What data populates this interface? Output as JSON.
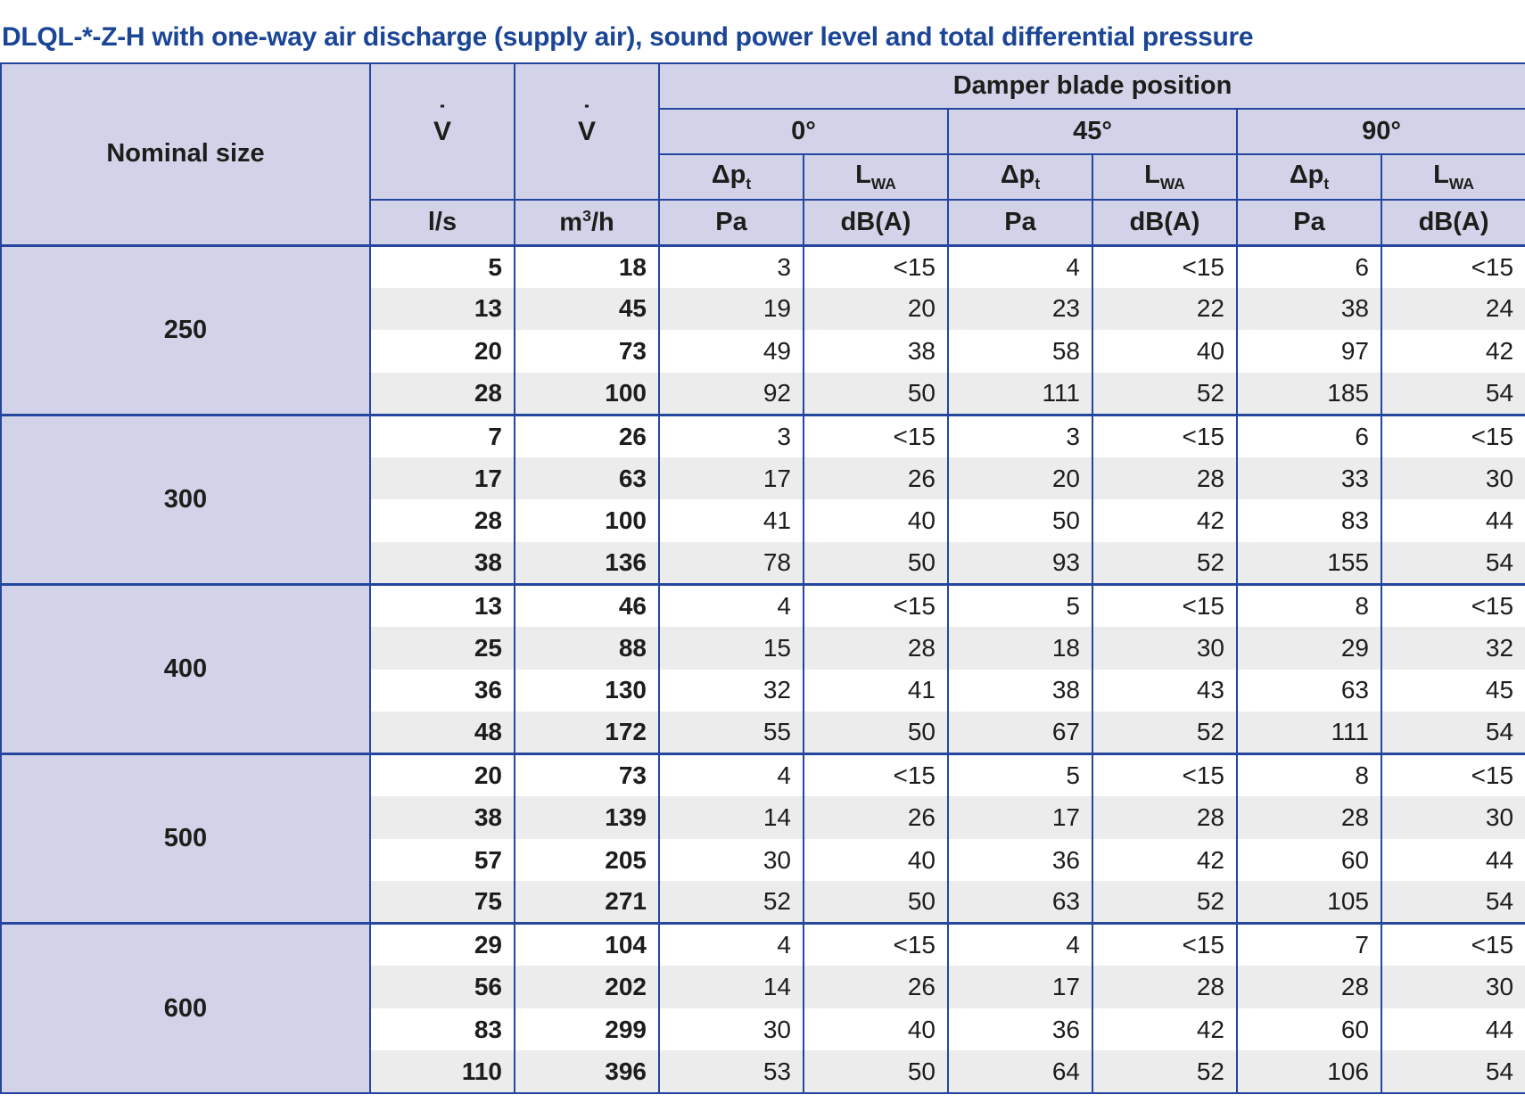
{
  "title": "DLQL-*-Z-H with one-way air discharge (supply air), sound power level and total differential pressure",
  "colors": {
    "title_blue": "#1b4596",
    "border_blue": "#24469f",
    "header_bg": "#d2d3e8",
    "row_alt_bg": "#ececec",
    "body_text": "#1d1d1b"
  },
  "table": {
    "header": {
      "nominal_size": "Nominal size",
      "vdot_base": "V",
      "vdot_dot": "˙",
      "damper": "Damper blade position",
      "angles": [
        "0°",
        "45°",
        "90°"
      ],
      "dp_main": "Δp",
      "dp_sub": "t",
      "lwa_main": "L",
      "lwa_sub": "WA",
      "units": {
        "ls": "l/s",
        "m3h_base": "m",
        "m3h_sup": "3",
        "m3h_rest": "/h",
        "pa": "Pa",
        "dba": "dB(A)"
      }
    },
    "groups": [
      {
        "size": "250",
        "rows": [
          [
            "5",
            "18",
            "3",
            "<15",
            "4",
            "<15",
            "6",
            "<15"
          ],
          [
            "13",
            "45",
            "19",
            "20",
            "23",
            "22",
            "38",
            "24"
          ],
          [
            "20",
            "73",
            "49",
            "38",
            "58",
            "40",
            "97",
            "42"
          ],
          [
            "28",
            "100",
            "92",
            "50",
            "111",
            "52",
            "185",
            "54"
          ]
        ]
      },
      {
        "size": "300",
        "rows": [
          [
            "7",
            "26",
            "3",
            "<15",
            "3",
            "<15",
            "6",
            "<15"
          ],
          [
            "17",
            "63",
            "17",
            "26",
            "20",
            "28",
            "33",
            "30"
          ],
          [
            "28",
            "100",
            "41",
            "40",
            "50",
            "42",
            "83",
            "44"
          ],
          [
            "38",
            "136",
            "78",
            "50",
            "93",
            "52",
            "155",
            "54"
          ]
        ]
      },
      {
        "size": "400",
        "rows": [
          [
            "13",
            "46",
            "4",
            "<15",
            "5",
            "<15",
            "8",
            "<15"
          ],
          [
            "25",
            "88",
            "15",
            "28",
            "18",
            "30",
            "29",
            "32"
          ],
          [
            "36",
            "130",
            "32",
            "41",
            "38",
            "43",
            "63",
            "45"
          ],
          [
            "48",
            "172",
            "55",
            "50",
            "67",
            "52",
            "111",
            "54"
          ]
        ]
      },
      {
        "size": "500",
        "rows": [
          [
            "20",
            "73",
            "4",
            "<15",
            "5",
            "<15",
            "8",
            "<15"
          ],
          [
            "38",
            "139",
            "14",
            "26",
            "17",
            "28",
            "28",
            "30"
          ],
          [
            "57",
            "205",
            "30",
            "40",
            "36",
            "42",
            "60",
            "44"
          ],
          [
            "75",
            "271",
            "52",
            "50",
            "63",
            "52",
            "105",
            "54"
          ]
        ]
      },
      {
        "size": "600",
        "rows": [
          [
            "29",
            "104",
            "4",
            "<15",
            "4",
            "<15",
            "7",
            "<15"
          ],
          [
            "56",
            "202",
            "14",
            "26",
            "17",
            "28",
            "28",
            "30"
          ],
          [
            "83",
            "299",
            "30",
            "40",
            "36",
            "42",
            "60",
            "44"
          ],
          [
            "110",
            "396",
            "53",
            "50",
            "64",
            "52",
            "106",
            "54"
          ]
        ]
      }
    ]
  }
}
